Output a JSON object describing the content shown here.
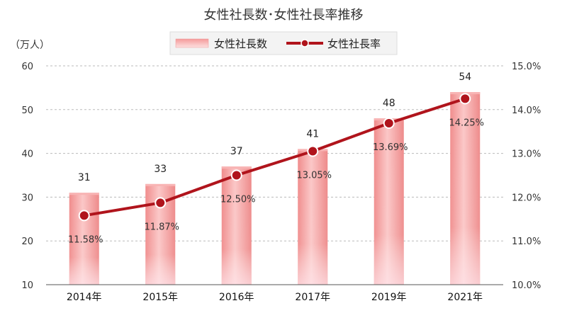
{
  "chart_data": {
    "type": "bar+line",
    "title": "女性社長数･女性社長率推移",
    "y_left_unit": "（万人）",
    "categories": [
      "2014年",
      "2015年",
      "2016年",
      "2017年",
      "2019年",
      "2021年"
    ],
    "series": [
      {
        "name": "女性社長数",
        "type": "bar",
        "axis": "left",
        "values": [
          31,
          33,
          37,
          41,
          48,
          54
        ],
        "labels": [
          "31",
          "33",
          "37",
          "41",
          "48",
          "54"
        ],
        "color": "#f4a6a6"
      },
      {
        "name": "女性社長率",
        "type": "line",
        "axis": "right",
        "values": [
          11.58,
          11.87,
          12.5,
          13.05,
          13.69,
          14.25
        ],
        "labels": [
          "11.58%",
          "11.87%",
          "12.50%",
          "13.05%",
          "13.69%",
          "14.25%"
        ],
        "color": "#b0141c"
      }
    ],
    "y_left": {
      "range": [
        10,
        60
      ],
      "ticks": [
        "10",
        "20",
        "30",
        "40",
        "50",
        "60"
      ]
    },
    "y_right": {
      "range": [
        10.0,
        15.0
      ],
      "ticks": [
        "10.0%",
        "11.0%",
        "12.0%",
        "13.0%",
        "14.0%",
        "15.0%"
      ]
    },
    "grid": true,
    "legend": "top-center"
  }
}
